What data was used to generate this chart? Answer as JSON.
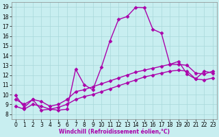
{
  "xlabel": "Windchill (Refroidissement éolien,°C)",
  "ylabel": "",
  "bg_color": "#c8eef0",
  "line_color": "#aa00aa",
  "xlim": [
    -0.5,
    23.5
  ],
  "ylim": [
    7.5,
    19.5
  ],
  "xticks": [
    0,
    1,
    2,
    3,
    4,
    5,
    6,
    7,
    8,
    9,
    10,
    11,
    12,
    13,
    14,
    15,
    16,
    17,
    18,
    19,
    20,
    21,
    22,
    23
  ],
  "yticks": [
    8,
    9,
    10,
    11,
    12,
    13,
    14,
    15,
    16,
    17,
    18,
    19
  ],
  "line1_x": [
    0,
    1,
    2,
    3,
    4,
    5,
    6,
    7,
    8,
    9,
    10,
    11,
    12,
    13,
    14,
    15,
    16,
    17,
    18,
    19,
    20,
    21,
    22,
    23
  ],
  "line1_y": [
    9.9,
    8.7,
    9.5,
    8.4,
    8.5,
    8.4,
    8.5,
    12.6,
    11.0,
    10.5,
    12.8,
    15.5,
    17.7,
    18.0,
    18.95,
    18.9,
    16.7,
    16.3,
    13.1,
    13.4,
    12.1,
    11.6,
    12.4,
    12.2
  ],
  "line2_x": [
    0,
    1,
    2,
    3,
    4,
    5,
    6,
    7,
    8,
    9,
    10,
    11,
    12,
    13,
    14,
    15,
    16,
    17,
    18,
    19,
    20,
    21,
    22,
    23
  ],
  "line2_y": [
    9.5,
    9.0,
    9.5,
    9.3,
    8.8,
    9.0,
    9.5,
    10.3,
    10.5,
    10.8,
    11.1,
    11.4,
    11.7,
    12.0,
    12.3,
    12.5,
    12.7,
    12.9,
    13.1,
    13.1,
    13.0,
    12.2,
    12.1,
    12.4
  ],
  "line3_x": [
    0,
    1,
    2,
    3,
    4,
    5,
    6,
    7,
    8,
    9,
    10,
    11,
    12,
    13,
    14,
    15,
    16,
    17,
    18,
    19,
    20,
    21,
    22,
    23
  ],
  "line3_y": [
    8.8,
    8.5,
    9.0,
    8.8,
    8.5,
    8.7,
    9.0,
    9.5,
    9.8,
    10.0,
    10.3,
    10.6,
    10.9,
    11.2,
    11.5,
    11.8,
    12.0,
    12.2,
    12.4,
    12.5,
    12.4,
    11.6,
    11.5,
    11.7
  ],
  "grid_color": "#a8d8da",
  "marker": "D",
  "markersize": 2.5,
  "linewidth": 1.0,
  "tick_fontsize": 5.5,
  "xlabel_fontsize": 5.5
}
